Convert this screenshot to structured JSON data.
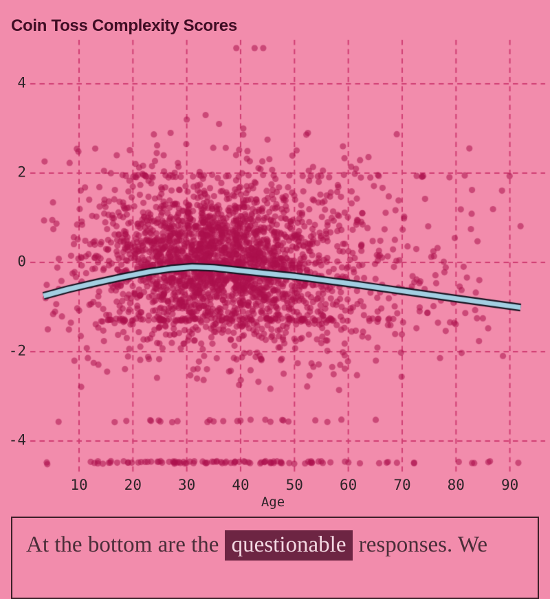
{
  "title": "Coin Toss Complexity Scores",
  "colors": {
    "background": "#f28cac",
    "title_text": "#400d24",
    "grid": "#cf3d72",
    "tick_text": "#2e2429",
    "point": "#ac104c",
    "trend_fill": "#a3cfe2",
    "trend_outline": "#181320",
    "footer_text": "#4b2e39",
    "footer_border": "#3d2029",
    "highlight_bg": "#6d2543",
    "highlight_text": "#f3d8e2"
  },
  "chart_data": {
    "type": "scatter",
    "title": "Coin Toss Complexity Scores",
    "xlabel": "Age",
    "ylabel": "",
    "xlim": [
      1,
      95
    ],
    "ylim": [
      -4.9,
      5.1
    ],
    "x_ticks": [
      10,
      20,
      30,
      40,
      50,
      60,
      70,
      80,
      90
    ],
    "y_ticks": [
      -4,
      -2,
      0,
      2,
      4
    ],
    "grid": {
      "style": "dashed",
      "color": "#cf3d72",
      "both_axes": true
    },
    "legend": "none",
    "points": {
      "color": "#ac104c",
      "opacity": 0.55,
      "radius": 4.6
    },
    "point_clusters": [
      {
        "name": "dense-core",
        "n": 1400,
        "age_mean": 34,
        "age_sd": 10,
        "age_min": 5,
        "age_max": 93,
        "value_mean": 0.08,
        "value_sd": 0.75,
        "value_min": -2.2,
        "value_max": 2.3
      },
      {
        "name": "mid-cloud",
        "n": 700,
        "age_mean": 38,
        "age_sd": 14,
        "age_min": 4,
        "age_max": 93,
        "value_mean": -0.2,
        "value_sd": 1.05,
        "value_min": -2.6,
        "value_max": 2.6
      },
      {
        "name": "wide-halo",
        "n": 380,
        "age_mean": 42,
        "age_sd": 19,
        "age_min": 3,
        "age_max": 93,
        "value_mean": -0.2,
        "value_sd": 1.5,
        "value_min": -2.9,
        "value_max": 3.0
      },
      {
        "name": "older-tail",
        "n": 60,
        "age_mean": 72,
        "age_sd": 10,
        "age_min": 58,
        "age_max": 93,
        "value_mean": -0.3,
        "value_sd": 1.0,
        "value_min": -2.3,
        "value_max": 2.1
      }
    ],
    "value_stripes": [
      {
        "value": 1.93,
        "n": 30,
        "age_min": 18,
        "age_max": 60
      },
      {
        "value": 1.93,
        "n": 10,
        "age_min": 60,
        "age_max": 91
      },
      {
        "value": -1.28,
        "n": 95,
        "age_min": 15,
        "age_max": 58
      },
      {
        "value": -1.28,
        "n": 8,
        "age_min": 58,
        "age_max": 70
      },
      {
        "value": -3.55,
        "n": 20,
        "age_min": 15,
        "age_max": 52
      },
      {
        "value": -3.55,
        "n": 4,
        "age_min": 52,
        "age_max": 68
      },
      {
        "value": -4.48,
        "n": 85,
        "age_min": 12,
        "age_max": 60
      },
      {
        "value": -4.48,
        "n": 14,
        "age_min": 60,
        "age_max": 93
      }
    ],
    "outlier_points": [
      [
        39.2,
        4.8
      ],
      [
        42.6,
        4.8
      ],
      [
        44.2,
        4.8
      ],
      [
        3.6,
        2.26
      ],
      [
        3.5,
        0.94
      ],
      [
        3.8,
        -0.8
      ],
      [
        4.2,
        -1.5
      ],
      [
        4.0,
        -4.48
      ],
      [
        4.1,
        -4.52
      ],
      [
        6.2,
        -3.57
      ],
      [
        27,
        2.9
      ],
      [
        30,
        3.2
      ],
      [
        33.5,
        3.3
      ],
      [
        36,
        3.1
      ],
      [
        24.5,
        2.62
      ],
      [
        40.5,
        3.0
      ],
      [
        45,
        2.75
      ],
      [
        13,
        2.55
      ],
      [
        17,
        2.4
      ],
      [
        52.5,
        2.9
      ],
      [
        59,
        2.6
      ],
      [
        69,
        2.87
      ]
    ],
    "trend_line": {
      "color": "#a3cfe2",
      "outline_color": "#181320",
      "points": [
        [
          3.4,
          -0.75
        ],
        [
          8,
          -0.6
        ],
        [
          13,
          -0.46
        ],
        [
          18,
          -0.33
        ],
        [
          23,
          -0.21
        ],
        [
          27,
          -0.14
        ],
        [
          31,
          -0.1
        ],
        [
          35,
          -0.12
        ],
        [
          40,
          -0.185
        ],
        [
          45,
          -0.25
        ],
        [
          50,
          -0.31
        ],
        [
          55,
          -0.39
        ],
        [
          60,
          -0.47
        ],
        [
          65,
          -0.555
        ],
        [
          70,
          -0.64
        ],
        [
          75,
          -0.725
        ],
        [
          80,
          -0.81
        ],
        [
          86,
          -0.91
        ],
        [
          92,
          -1.01
        ]
      ]
    }
  },
  "footer": {
    "text_before": "At the bottom are the ",
    "highlight": "questionable",
    "text_after": " responses. We"
  }
}
